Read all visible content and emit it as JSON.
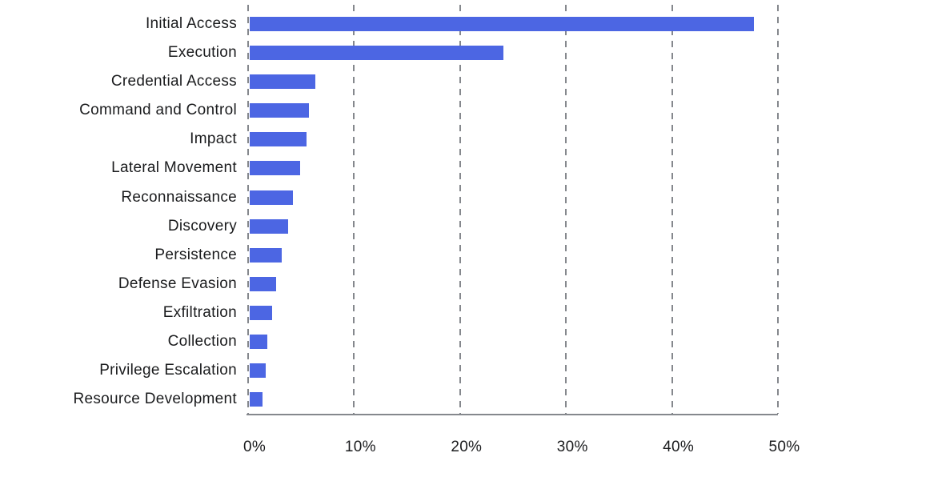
{
  "chart_data": {
    "type": "bar",
    "orientation": "horizontal",
    "title": "",
    "xlabel": "",
    "ylabel": "",
    "categories": [
      "Initial Access",
      "Execution",
      "Credential Access",
      "Command and Control",
      "Impact",
      "Lateral Movement",
      "Reconnaissance",
      "Discovery",
      "Persistence",
      "Defense Evasion",
      "Exfiltration",
      "Collection",
      "Privilege Escalation",
      "Resource Development"
    ],
    "values": [
      47.7,
      24.0,
      6.2,
      5.6,
      5.4,
      4.8,
      4.1,
      3.6,
      3.0,
      2.5,
      2.1,
      1.7,
      1.5,
      1.2
    ],
    "unit": "%",
    "xlim": [
      0,
      50
    ],
    "x_tick_labels": [
      "0%",
      "10%",
      "20%",
      "30%",
      "40%",
      "50%"
    ],
    "grid": "vertical-dashed",
    "legend": "none",
    "colors": {
      "bar": "#4C66E3",
      "grid": "#85888D",
      "axis": "#85888D",
      "text": "#1B1C1E",
      "background": "#FFFFFF"
    }
  }
}
